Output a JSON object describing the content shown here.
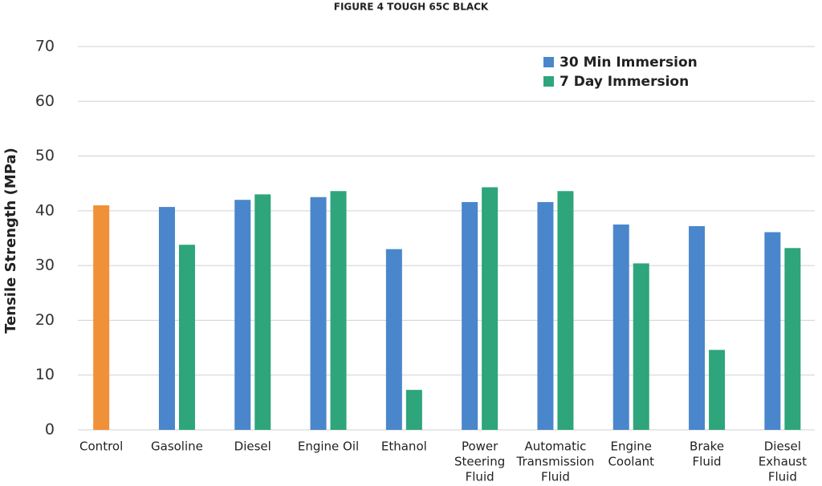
{
  "chart_data": {
    "type": "bar",
    "title": "FIGURE 4 TOUGH 65C BLACK",
    "y_label": "Tensile Strength (MPa)",
    "categories": [
      [
        "Control"
      ],
      [
        "Gasoline"
      ],
      [
        "Diesel"
      ],
      [
        "Engine Oil"
      ],
      [
        "Ethanol"
      ],
      [
        "Power",
        "Steering",
        "Fluid"
      ],
      [
        "Automatic",
        "Transmission",
        "Fluid"
      ],
      [
        "Engine",
        "Coolant"
      ],
      [
        "Brake",
        "Fluid"
      ],
      [
        "Diesel",
        "Exhaust",
        "Fluid"
      ]
    ],
    "series": [
      {
        "name": "30 Min Immersion",
        "color": "#4a86cc",
        "values": [
          41,
          40.7,
          42,
          42.5,
          33,
          41.6,
          41.6,
          37.5,
          37.2,
          36.1
        ]
      },
      {
        "name": "7 Day Immersion",
        "color": "#2ea57a",
        "values": [
          null,
          33.8,
          43,
          43.6,
          7.3,
          44.3,
          43.6,
          30.4,
          14.6,
          33.2
        ]
      }
    ],
    "control_color": "#f0913a",
    "ylim": [
      0,
      70
    ],
    "yticks": [
      0,
      10,
      20,
      30,
      40,
      50,
      60,
      70
    ],
    "grid": true,
    "legend": "top-right"
  }
}
